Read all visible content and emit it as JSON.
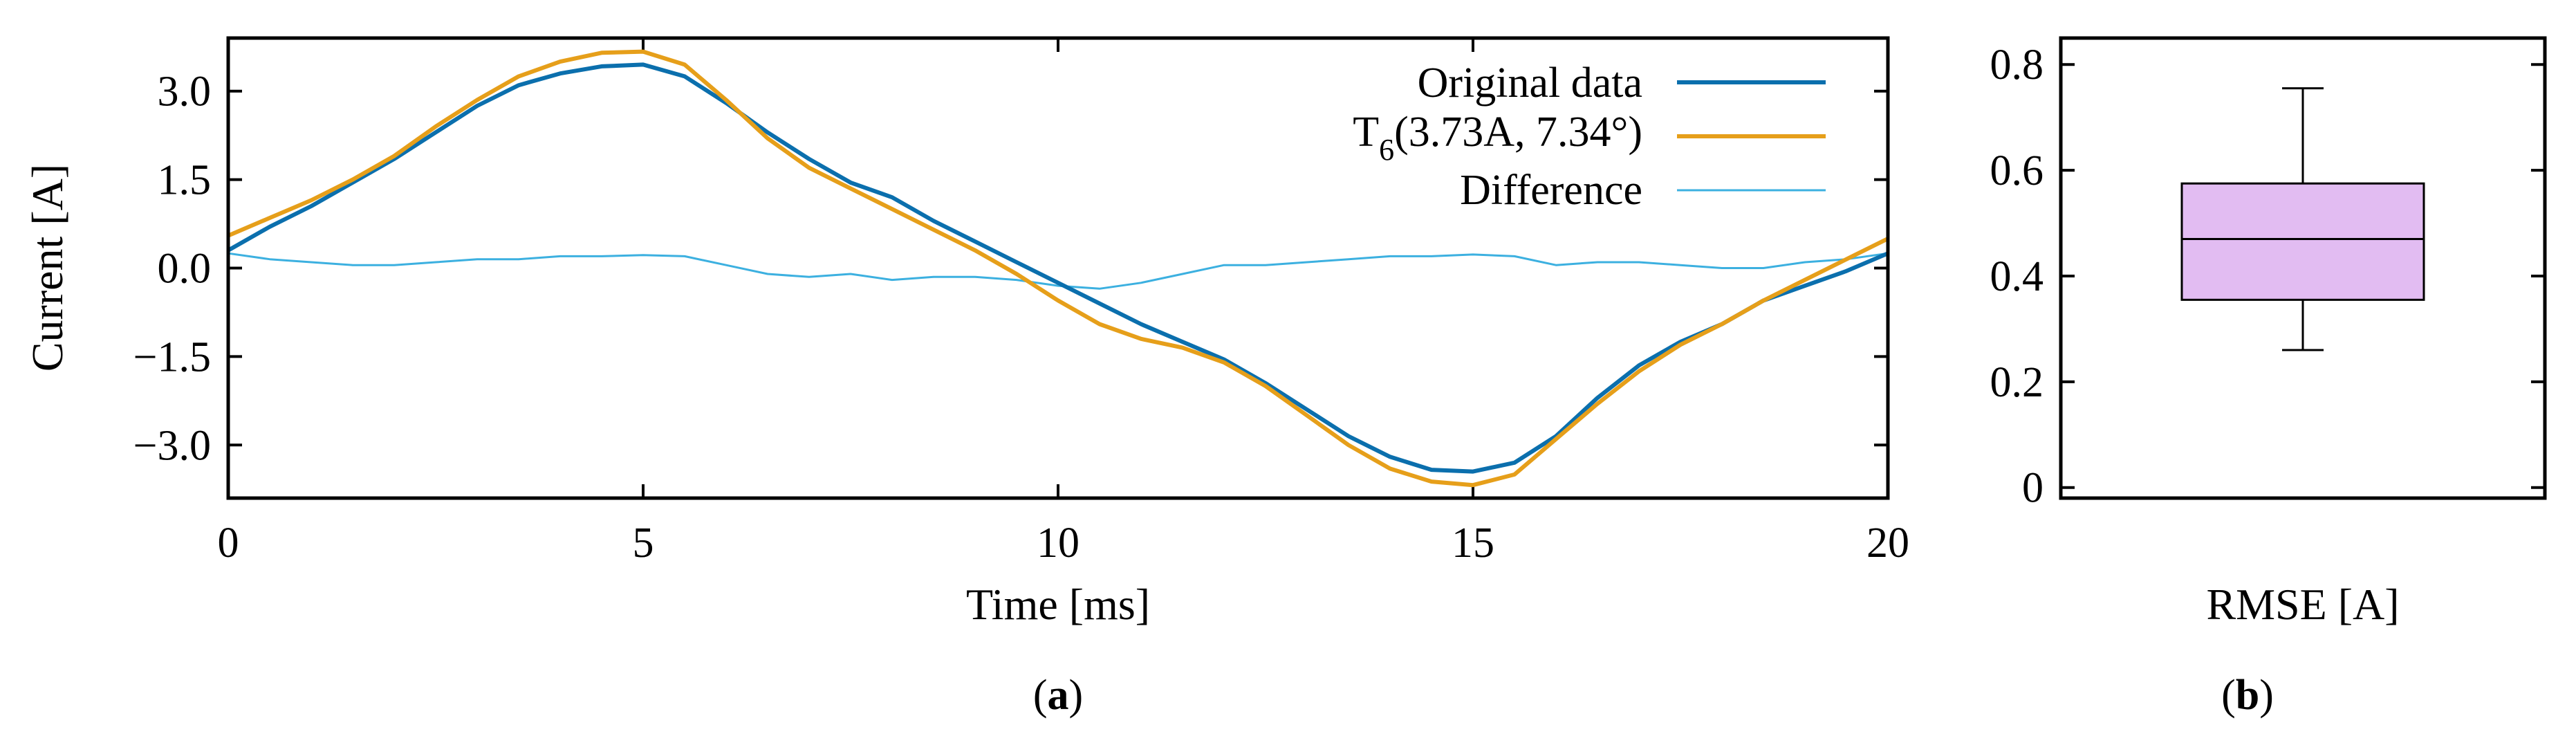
{
  "colors": {
    "original": "#0b6fad",
    "fitted": "#e69f1a",
    "difference": "#3cb0e0",
    "box_fill": "#e2bcf2"
  },
  "panel_labels": {
    "a": {
      "pre": "(",
      "bold": "a",
      "post": ")"
    },
    "b": {
      "pre": "(",
      "bold": "b",
      "post": ")"
    }
  },
  "chart_data": [
    {
      "id": "a",
      "type": "line",
      "xlabel": "Time [ms]",
      "ylabel": "Current [A]",
      "xlim": [
        0,
        20
      ],
      "ylim": [
        -3.9,
        3.9
      ],
      "xticks": [
        0,
        5,
        10,
        15,
        20
      ],
      "xtick_labels": [
        "0",
        "5",
        "10",
        "15",
        "20"
      ],
      "yticks": [
        3.0,
        1.5,
        0.0,
        -1.5,
        -3.0
      ],
      "ytick_labels": [
        "3.0",
        "1.5",
        "0.0",
        "−1.5",
        "−3.0"
      ],
      "legend_position": "top-right",
      "legend": {
        "original": "Original data",
        "fitted_main": "T",
        "fitted_sub": "6",
        "fitted_rest": "(3.73A, 7.34°)",
        "difference": "Difference"
      },
      "series": [
        {
          "name": "Original data",
          "x": [
            0,
            0.5,
            1,
            1.5,
            2,
            2.5,
            3,
            3.5,
            4,
            4.5,
            5,
            5.5,
            6,
            6.5,
            7,
            7.5,
            8,
            8.5,
            9,
            9.5,
            10,
            10.5,
            11,
            11.5,
            12,
            12.5,
            13,
            13.5,
            14,
            14.5,
            15,
            15.5,
            16,
            16.5,
            17,
            17.5,
            18,
            18.5,
            19,
            19.5,
            20
          ],
          "values": [
            0.3,
            0.7,
            1.05,
            1.45,
            1.85,
            2.3,
            2.75,
            3.1,
            3.3,
            3.42,
            3.45,
            3.25,
            2.8,
            2.3,
            1.85,
            1.45,
            1.2,
            0.8,
            0.45,
            0.1,
            -0.25,
            -0.6,
            -0.95,
            -1.25,
            -1.55,
            -1.95,
            -2.4,
            -2.85,
            -3.2,
            -3.42,
            -3.45,
            -3.3,
            -2.85,
            -2.2,
            -1.65,
            -1.25,
            -0.95,
            -0.55,
            -0.3,
            -0.05,
            0.25
          ]
        },
        {
          "name": "T6(3.73A, 7.34°)",
          "x": [
            0,
            0.5,
            1,
            1.5,
            2,
            2.5,
            3,
            3.5,
            4,
            4.5,
            5,
            5.5,
            6,
            6.5,
            7,
            7.5,
            8,
            8.5,
            9,
            9.5,
            10,
            10.5,
            11,
            11.5,
            12,
            12.5,
            13,
            13.5,
            14,
            14.5,
            15,
            15.5,
            16,
            16.5,
            17,
            17.5,
            18,
            18.5,
            19,
            19.5,
            20
          ],
          "values": [
            0.55,
            0.85,
            1.15,
            1.5,
            1.9,
            2.4,
            2.85,
            3.25,
            3.5,
            3.65,
            3.67,
            3.45,
            2.85,
            2.2,
            1.7,
            1.35,
            1.0,
            0.65,
            0.3,
            -0.1,
            -0.55,
            -0.95,
            -1.2,
            -1.35,
            -1.6,
            -2.0,
            -2.5,
            -3.0,
            -3.4,
            -3.62,
            -3.68,
            -3.5,
            -2.9,
            -2.3,
            -1.75,
            -1.3,
            -0.95,
            -0.55,
            -0.2,
            0.15,
            0.5
          ]
        },
        {
          "name": "Difference",
          "x": [
            0,
            0.5,
            1,
            1.5,
            2,
            2.5,
            3,
            3.5,
            4,
            4.5,
            5,
            5.5,
            6,
            6.5,
            7,
            7.5,
            8,
            8.5,
            9,
            9.5,
            10,
            10.5,
            11,
            11.5,
            12,
            12.5,
            13,
            13.5,
            14,
            14.5,
            15,
            15.5,
            16,
            16.5,
            17,
            17.5,
            18,
            18.5,
            19,
            19.5,
            20
          ],
          "values": [
            0.25,
            0.15,
            0.1,
            0.05,
            0.05,
            0.1,
            0.15,
            0.15,
            0.2,
            0.2,
            0.22,
            0.2,
            0.05,
            -0.1,
            -0.15,
            -0.1,
            -0.2,
            -0.15,
            -0.15,
            -0.2,
            -0.3,
            -0.35,
            -0.25,
            -0.1,
            0.05,
            0.05,
            0.1,
            0.15,
            0.2,
            0.2,
            0.23,
            0.2,
            0.05,
            0.1,
            0.1,
            0.05,
            0.0,
            0.0,
            0.1,
            0.15,
            0.25
          ]
        }
      ]
    },
    {
      "id": "b",
      "type": "box",
      "xlabel": "RMSE [A]",
      "ylim": [
        -0.02,
        0.85
      ],
      "yticks": [
        0,
        0.2,
        0.4,
        0.6,
        0.8
      ],
      "ytick_labels": [
        "0",
        "0.2",
        "0.4",
        "0.6",
        "0.8"
      ],
      "box": {
        "min": 0.26,
        "q1": 0.355,
        "median": 0.47,
        "q3": 0.575,
        "max": 0.755
      }
    }
  ]
}
